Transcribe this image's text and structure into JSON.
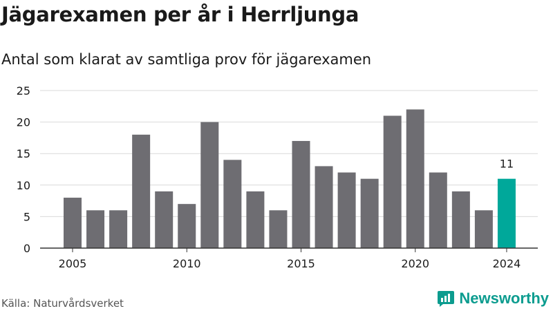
{
  "title": "Jägarexamen per år i Herrljunga",
  "subtitle": "Antal som klarat av samtliga prov för jägarexamen",
  "source": "Källa: Naturvårdsverket",
  "brand": {
    "name": "Newsworthy",
    "icon": "newsworthy-logo-icon",
    "color": "#0c9c8f"
  },
  "colors": {
    "bar": "#6e6d72",
    "highlight": "#00a89a",
    "grid": "#d9d9d9",
    "axis": "#333333"
  },
  "chart_data": {
    "type": "bar",
    "x": [
      2005,
      2006,
      2007,
      2008,
      2009,
      2010,
      2011,
      2012,
      2013,
      2014,
      2015,
      2016,
      2017,
      2018,
      2019,
      2020,
      2021,
      2022,
      2023,
      2024
    ],
    "values": [
      8,
      6,
      6,
      18,
      9,
      7,
      20,
      14,
      9,
      6,
      17,
      13,
      12,
      11,
      21,
      22,
      12,
      9,
      6,
      11
    ],
    "xticks": [
      2005,
      2010,
      2015,
      2020,
      2024
    ],
    "yticks": [
      0,
      5,
      10,
      15,
      20,
      25
    ],
    "ylim": [
      0,
      25
    ],
    "highlight": {
      "x": 2024,
      "label": "11"
    },
    "grid": true,
    "xlabel": "",
    "ylabel": ""
  }
}
